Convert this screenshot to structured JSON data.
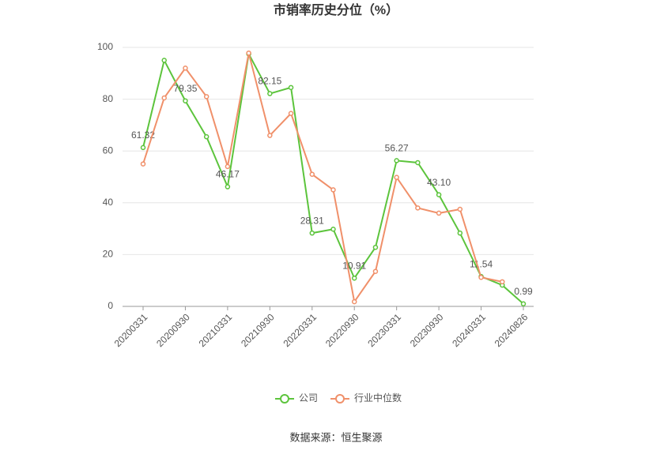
{
  "chart_data": {
    "type": "line",
    "title": "市销率历史分位（%）",
    "categories": [
      "20200331",
      null,
      "20200930",
      null,
      "20210331",
      null,
      "20210930",
      null,
      "20220331",
      null,
      "20220930",
      null,
      "20230331",
      null,
      "20230930",
      null,
      "20240331",
      null,
      "20240826"
    ],
    "series": [
      {
        "name": "公司",
        "color": "#5cc43c",
        "values": [
          61.32,
          95,
          79.35,
          65.5,
          46.17,
          97.5,
          82.15,
          84.5,
          28.31,
          29.8,
          10.91,
          22.8,
          56.27,
          55.5,
          43.1,
          28.3,
          11.54,
          8.2,
          0.99
        ],
        "value_labels": [
          "61.32",
          null,
          "79.35",
          null,
          "46.17",
          null,
          "82.15",
          null,
          "28.31",
          null,
          "10.91",
          null,
          "56.27",
          null,
          "43.10",
          null,
          "11.54",
          null,
          "0.99"
        ]
      },
      {
        "name": "行业中位数",
        "color": "#f0906a",
        "values": [
          55,
          80.5,
          92,
          81,
          54,
          97.8,
          66,
          74.5,
          51,
          45,
          1.8,
          13.5,
          49.8,
          38,
          36,
          37.5,
          11.2,
          9.5,
          null
        ]
      }
    ],
    "ylim": [
      0,
      100
    ],
    "yticks": [
      0,
      20,
      40,
      60,
      80,
      100
    ],
    "grid": true,
    "source": "数据来源：恒生聚源"
  }
}
